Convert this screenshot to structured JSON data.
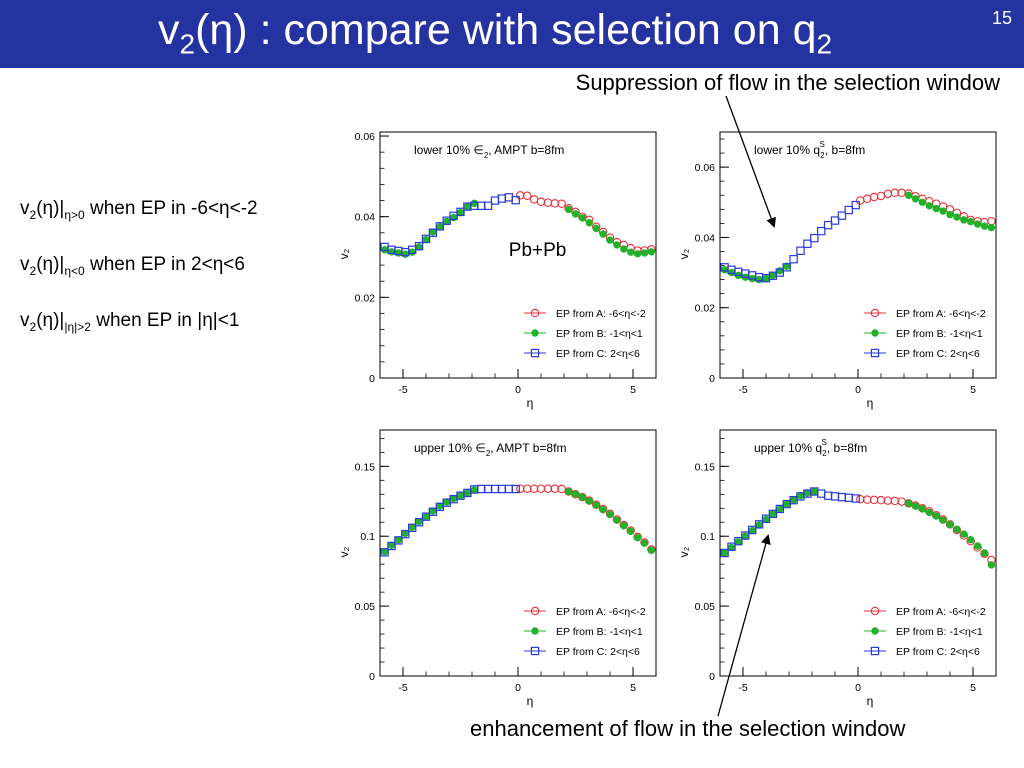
{
  "slide": {
    "title_main": "v",
    "title_sub1": "2",
    "title_mid": "(η) : compare with selection on q",
    "title_sub2": "2",
    "number": "15"
  },
  "annotations": {
    "top": "Suppression of flow in the selection window",
    "bottom": "enhancement of flow in the selection window"
  },
  "conditions": [
    {
      "pre": "v",
      "sub": "2",
      "mid": "(η)|",
      "range": "η>0",
      "text": " when EP in -6<η<-2"
    },
    {
      "pre": "v",
      "sub": "2",
      "mid": "(η)|",
      "range": "η<0",
      "text": " when EP in 2<η<6"
    },
    {
      "pre": "v",
      "sub": "2",
      "mid": "(η)|",
      "range": "|η|>2",
      "text": " when EP in |η|<1"
    }
  ],
  "styles": {
    "A": {
      "color": "#e8303a",
      "marker": "open-circle"
    },
    "B": {
      "color": "#22b22a",
      "marker": "filled-circle"
    },
    "C": {
      "color": "#2a3ad8",
      "marker": "open-square"
    }
  },
  "chart_data": [
    {
      "type": "scatter",
      "title": "lower 10% ∈₂, AMPT b=8fm",
      "title_parts": [
        "lower 10% ",
        "∈",
        "2",
        ", AMPT b=8fm"
      ],
      "inset_label": "Pb+Pb",
      "xlabel": "η",
      "ylabel": "v₂",
      "xlim": [
        -6,
        6
      ],
      "ylim": [
        0,
        0.061
      ],
      "xticks": [
        -5,
        0,
        5
      ],
      "xtick_labels": [
        "-5",
        "0",
        "5"
      ],
      "yticks": [
        0,
        0.02,
        0.04,
        0.06
      ],
      "ytick_labels": [
        "0",
        "0.02",
        "0.04",
        "0.06"
      ],
      "legend": "lower-right",
      "series": [
        {
          "name": "EP from A: -6<η<-2",
          "style": "A",
          "x": [
            0.1,
            0.4,
            0.7,
            1.0,
            1.3,
            1.6,
            1.9,
            2.2,
            2.5,
            2.8,
            3.1,
            3.4,
            3.7,
            4.0,
            4.3,
            4.6,
            4.9,
            5.2,
            5.5,
            5.8
          ],
          "y": [
            0.0453,
            0.0452,
            0.0443,
            0.0437,
            0.0435,
            0.0433,
            0.0432,
            0.0421,
            0.0412,
            0.04,
            0.0392,
            0.0375,
            0.0362,
            0.0348,
            0.0337,
            0.033,
            0.0322,
            0.0316,
            0.0316,
            0.0319
          ]
        },
        {
          "name": "EP from B: -1<η<1",
          "style": "B",
          "x": [
            -5.8,
            -5.5,
            -5.2,
            -4.9,
            -4.6,
            -4.3,
            -4.0,
            -3.7,
            -3.4,
            -3.1,
            -2.8,
            -2.5,
            -2.2,
            -1.9,
            2.2,
            2.5,
            2.8,
            3.1,
            3.4,
            3.7,
            4.0,
            4.3,
            4.6,
            4.9,
            5.2,
            5.5,
            5.8
          ],
          "y": [
            0.0318,
            0.0313,
            0.031,
            0.0307,
            0.0312,
            0.0325,
            0.0343,
            0.0362,
            0.0375,
            0.0388,
            0.0398,
            0.041,
            0.0425,
            0.0433,
            0.0418,
            0.0407,
            0.0397,
            0.0385,
            0.0371,
            0.0357,
            0.0342,
            0.033,
            0.032,
            0.0312,
            0.0308,
            0.031,
            0.0313
          ]
        },
        {
          "name": "EP from C:  2<η<6",
          "style": "C",
          "x": [
            -5.8,
            -5.5,
            -5.2,
            -4.9,
            -4.6,
            -4.3,
            -4.0,
            -3.7,
            -3.4,
            -3.1,
            -2.8,
            -2.5,
            -2.2,
            -1.9,
            -1.6,
            -1.3,
            -1.0,
            -0.7,
            -0.4,
            -0.1
          ],
          "y": [
            0.0325,
            0.0318,
            0.0315,
            0.0312,
            0.0318,
            0.0327,
            0.0345,
            0.036,
            0.0376,
            0.039,
            0.0402,
            0.0412,
            0.0425,
            0.0427,
            0.0427,
            0.0427,
            0.044,
            0.0445,
            0.0448,
            0.0441
          ]
        }
      ]
    },
    {
      "type": "scatter",
      "title": "lower 10% q₂ˢ, b=8fm",
      "title_parts": [
        "lower 10% ",
        "q",
        "2",
        "S",
        ", b=8fm"
      ],
      "xlabel": "η",
      "ylabel": "v₂",
      "xlim": [
        -6,
        6
      ],
      "ylim": [
        0,
        0.07
      ],
      "xticks": [
        -5,
        0,
        5
      ],
      "xtick_labels": [
        "-5",
        "0",
        "5"
      ],
      "yticks": [
        0,
        0.02,
        0.04,
        0.06
      ],
      "ytick_labels": [
        "0",
        "0.02",
        "0.04",
        "0.06"
      ],
      "legend": "lower-right",
      "series": [
        {
          "name": "EP from A: -6<η<-2",
          "style": "A",
          "x": [
            0.1,
            0.4,
            0.7,
            1.0,
            1.3,
            1.6,
            1.9,
            2.2,
            2.5,
            2.8,
            3.1,
            3.4,
            3.7,
            4.0,
            4.3,
            4.6,
            4.9,
            5.2,
            5.5,
            5.8
          ],
          "y": [
            0.0505,
            0.051,
            0.0515,
            0.0518,
            0.0524,
            0.0527,
            0.0527,
            0.0525,
            0.0517,
            0.051,
            0.0503,
            0.0496,
            0.0488,
            0.048,
            0.047,
            0.046,
            0.045,
            0.0446,
            0.0444,
            0.0446
          ]
        },
        {
          "name": "EP from B: -1<η<1",
          "style": "B",
          "x": [
            -5.8,
            -5.5,
            -5.2,
            -4.9,
            -4.6,
            -4.3,
            -4.0,
            -3.7,
            -3.4,
            -3.1,
            2.2,
            2.5,
            2.8,
            3.1,
            3.4,
            3.7,
            4.0,
            4.3,
            4.6,
            4.9,
            5.2,
            5.5,
            5.8
          ],
          "y": [
            0.0308,
            0.03,
            0.0292,
            0.0287,
            0.0283,
            0.028,
            0.0283,
            0.0292,
            0.0305,
            0.0318,
            0.052,
            0.051,
            0.05,
            0.049,
            0.0482,
            0.0475,
            0.0465,
            0.0458,
            0.045,
            0.0445,
            0.0438,
            0.0432,
            0.0428
          ]
        },
        {
          "name": "EP from C:  2<η<6",
          "style": "C",
          "x": [
            -5.8,
            -5.5,
            -5.2,
            -4.9,
            -4.6,
            -4.3,
            -4.0,
            -3.7,
            -3.4,
            -3.1,
            -2.8,
            -2.5,
            -2.2,
            -1.9,
            -1.6,
            -1.3,
            -1.0,
            -0.7,
            -0.4,
            -0.1
          ],
          "y": [
            0.0315,
            0.0308,
            0.0302,
            0.0297,
            0.0292,
            0.0287,
            0.0284,
            0.0291,
            0.03,
            0.0315,
            0.0338,
            0.0362,
            0.0382,
            0.0398,
            0.0418,
            0.0435,
            0.0448,
            0.0462,
            0.0478,
            0.0492
          ]
        }
      ]
    },
    {
      "type": "scatter",
      "title": "upper 10% ∈₂, AMPT b=8fm",
      "title_parts": [
        "upper 10% ",
        "∈",
        "2",
        ", AMPT b=8fm"
      ],
      "xlabel": "η",
      "ylabel": "v₂",
      "xlim": [
        -6,
        6
      ],
      "ylim": [
        0,
        0.176
      ],
      "xticks": [
        -5,
        0,
        5
      ],
      "xtick_labels": [
        "-5",
        "0",
        "5"
      ],
      "yticks": [
        0,
        0.05,
        0.1,
        0.15
      ],
      "ytick_labels": [
        "0",
        "0.05",
        "0.1",
        "0.15"
      ],
      "legend": "lower-right",
      "series": [
        {
          "name": "EP from A: -6<η<-2",
          "style": "A",
          "x": [
            0.1,
            0.4,
            0.7,
            1.0,
            1.3,
            1.6,
            1.9,
            2.2,
            2.5,
            2.8,
            3.1,
            3.4,
            3.7,
            4.0,
            4.3,
            4.6,
            4.9,
            5.2,
            5.5,
            5.8
          ],
          "y": [
            0.134,
            0.134,
            0.134,
            0.134,
            0.134,
            0.134,
            0.1338,
            0.132,
            0.13,
            0.128,
            0.1255,
            0.1225,
            0.1195,
            0.116,
            0.112,
            0.108,
            0.104,
            0.0995,
            0.0955,
            0.0905
          ]
        },
        {
          "name": "EP from B: -1<η<1",
          "style": "B",
          "x": [
            -5.8,
            -5.5,
            -5.2,
            -4.9,
            -4.6,
            -4.3,
            -4.0,
            -3.7,
            -3.4,
            -3.1,
            -2.8,
            -2.5,
            -2.2,
            -1.9,
            2.2,
            2.5,
            2.8,
            3.1,
            3.4,
            3.7,
            4.0,
            4.3,
            4.6,
            4.9,
            5.2,
            5.5,
            5.8
          ],
          "y": [
            0.089,
            0.0935,
            0.0975,
            0.102,
            0.1065,
            0.1105,
            0.114,
            0.118,
            0.1215,
            0.1245,
            0.127,
            0.129,
            0.131,
            0.133,
            0.132,
            0.13,
            0.128,
            0.1252,
            0.1222,
            0.119,
            0.1155,
            0.1115,
            0.1075,
            0.1035,
            0.099,
            0.095,
            0.09
          ]
        },
        {
          "name": "EP from C:  2<η<6",
          "style": "C",
          "x": [
            -5.8,
            -5.5,
            -5.2,
            -4.9,
            -4.6,
            -4.3,
            -4.0,
            -3.7,
            -3.4,
            -3.1,
            -2.8,
            -2.5,
            -2.2,
            -1.9,
            -1.6,
            -1.3,
            -1.0,
            -0.7,
            -0.4,
            -0.1
          ],
          "y": [
            0.0885,
            0.093,
            0.097,
            0.1015,
            0.106,
            0.11,
            0.114,
            0.1175,
            0.121,
            0.124,
            0.1265,
            0.129,
            0.131,
            0.1335,
            0.1338,
            0.1338,
            0.1338,
            0.1338,
            0.1338,
            0.1338
          ]
        }
      ]
    },
    {
      "type": "scatter",
      "title": "upper 10% q₂ˢ, b=8fm",
      "title_parts": [
        "upper 10% ",
        "q",
        "2",
        "S",
        ", b=8fm"
      ],
      "xlabel": "η",
      "ylabel": "v₂",
      "xlim": [
        -6,
        6
      ],
      "ylim": [
        0,
        0.176
      ],
      "xticks": [
        -5,
        0,
        5
      ],
      "xtick_labels": [
        "-5",
        "0",
        "5"
      ],
      "yticks": [
        0,
        0.05,
        0.1,
        0.15
      ],
      "ytick_labels": [
        "0",
        "0.05",
        "0.1",
        "0.15"
      ],
      "legend": "lower-right",
      "series": [
        {
          "name": "EP from A: -6<η<-2",
          "style": "A",
          "x": [
            0.1,
            0.4,
            0.7,
            1.0,
            1.3,
            1.6,
            1.9,
            2.2,
            2.5,
            2.8,
            3.1,
            3.4,
            3.7,
            4.0,
            4.3,
            4.6,
            4.9,
            5.2,
            5.5,
            5.8
          ],
          "y": [
            0.1265,
            0.1262,
            0.126,
            0.1258,
            0.1255,
            0.1253,
            0.1248,
            0.1235,
            0.122,
            0.12,
            0.1178,
            0.115,
            0.112,
            0.1085,
            0.1045,
            0.1005,
            0.0965,
            0.092,
            0.0875,
            0.083
          ]
        },
        {
          "name": "EP from B: -1<η<1",
          "style": "B",
          "x": [
            -5.8,
            -5.5,
            -5.2,
            -4.9,
            -4.6,
            -4.3,
            -4.0,
            -3.7,
            -3.4,
            -3.1,
            -2.8,
            -2.5,
            -2.2,
            -1.9,
            2.2,
            2.5,
            2.8,
            3.1,
            3.4,
            3.7,
            4.0,
            4.3,
            4.6,
            4.9,
            5.2,
            5.5,
            5.8
          ],
          "y": [
            0.088,
            0.092,
            0.096,
            0.1,
            0.104,
            0.108,
            0.112,
            0.116,
            0.1195,
            0.123,
            0.126,
            0.129,
            0.131,
            0.132,
            0.1235,
            0.1215,
            0.1195,
            0.117,
            0.1145,
            0.1115,
            0.1085,
            0.105,
            0.1015,
            0.0975,
            0.093,
            0.088,
            0.0795
          ]
        },
        {
          "name": "EP from C:  2<η<6",
          "style": "C",
          "x": [
            -5.8,
            -5.5,
            -5.2,
            -4.9,
            -4.6,
            -4.3,
            -4.0,
            -3.7,
            -3.4,
            -3.1,
            -2.8,
            -2.5,
            -2.2,
            -1.9,
            -1.6,
            -1.3,
            -1.0,
            -0.7,
            -0.4,
            -0.1
          ],
          "y": [
            0.088,
            0.0925,
            0.0965,
            0.1005,
            0.1045,
            0.1085,
            0.1125,
            0.116,
            0.1195,
            0.123,
            0.1258,
            0.1285,
            0.1305,
            0.132,
            0.1305,
            0.129,
            0.1285,
            0.128,
            0.1275,
            0.127
          ]
        }
      ]
    }
  ]
}
